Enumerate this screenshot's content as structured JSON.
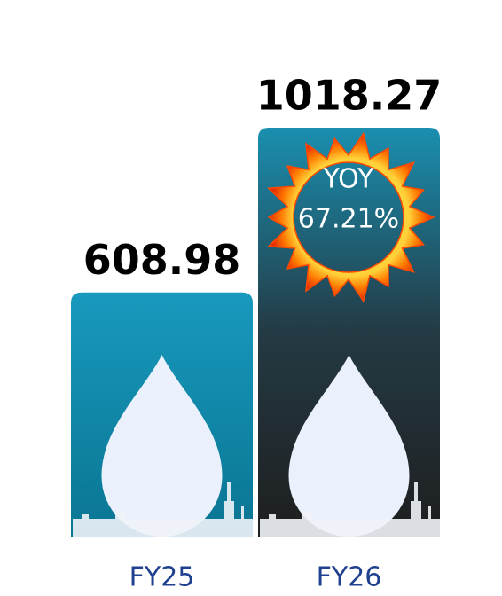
{
  "chart_data": {
    "type": "bar",
    "categories": [
      "FY25",
      "FY26"
    ],
    "values": [
      608.98,
      1018.27
    ],
    "colors": [
      "#1899bd",
      "#1a8fb0"
    ],
    "annotations": [
      "YOY",
      "67.21%"
    ]
  }
}
